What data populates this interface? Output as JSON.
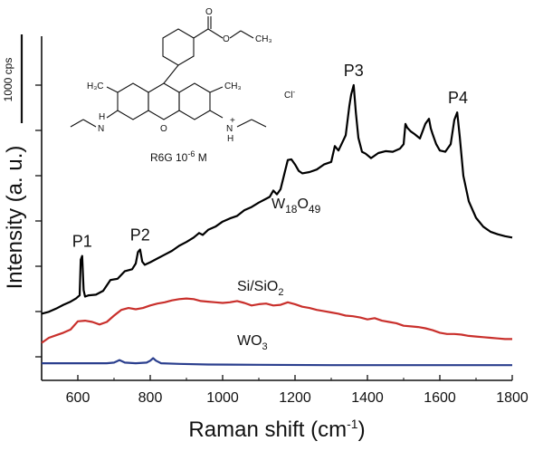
{
  "chart_data": {
    "type": "line",
    "xlabel": "Raman shift (cm",
    "xlabel_sup": "-1",
    "xlabel_tail": ")",
    "ylabel": "Intensity  (a. u.)",
    "xlim": [
      500,
      1800
    ],
    "x_ticks": [
      600,
      800,
      1000,
      1200,
      1400,
      1600,
      1800
    ],
    "y_ticks": 7,
    "grid": false,
    "scale_bar": {
      "label": "1000 cps",
      "value": 1000
    },
    "molecule": {
      "caption_base": "R6G 10",
      "caption_exp": "-6",
      "caption_tail": " M",
      "counterion": "Cl",
      "counterion_charge": "-",
      "plus": "+",
      "groups": {
        "methyl_left": "H₃C",
        "methyl_right": "CH₃",
        "ester_ch3": "CH₃",
        "o_ring": "O",
        "o_carbonyl": "O",
        "o_ester": "O",
        "n_left": "N",
        "n_right": "N",
        "h_left": "H",
        "h_right": "H"
      }
    },
    "peak_labels": [
      {
        "text": "P1",
        "x": 612
      },
      {
        "text": "P2",
        "x": 772
      },
      {
        "text": "P3",
        "x": 1362
      },
      {
        "text": "P4",
        "x": 1650
      }
    ],
    "series": [
      {
        "name": "W18O49",
        "label_base": "W",
        "label_sub1": "18",
        "label_mid": "O",
        "label_sub2": "49",
        "color": "#000000",
        "x": [
          500,
          520,
          540,
          560,
          580,
          595,
          605,
          608,
          612,
          616,
          620,
          630,
          650,
          670,
          690,
          710,
          730,
          750,
          760,
          766,
          772,
          778,
          785,
          800,
          820,
          840,
          860,
          880,
          900,
          920,
          935,
          945,
          960,
          980,
          1000,
          1020,
          1040,
          1060,
          1080,
          1100,
          1120,
          1130,
          1140,
          1150,
          1160,
          1170,
          1180,
          1190,
          1200,
          1210,
          1220,
          1240,
          1260,
          1280,
          1300,
          1310,
          1320,
          1330,
          1340,
          1350,
          1355,
          1362,
          1368,
          1375,
          1385,
          1395,
          1410,
          1430,
          1450,
          1470,
          1490,
          1500,
          1505,
          1510,
          1520,
          1530,
          1545,
          1560,
          1570,
          1575,
          1580,
          1590,
          1600,
          1615,
          1630,
          1640,
          1648,
          1655,
          1665,
          1680,
          1700,
          1720,
          1740,
          1760,
          1780,
          1800
        ],
        "y": [
          630,
          660,
          710,
          770,
          820,
          870,
          920,
          1480,
          1540,
          1000,
          900,
          920,
          930,
          990,
          1160,
          1180,
          1300,
          1330,
          1420,
          1600,
          1640,
          1450,
          1400,
          1440,
          1500,
          1560,
          1620,
          1700,
          1760,
          1830,
          1900,
          1870,
          1950,
          2000,
          2080,
          2130,
          2170,
          2260,
          2310,
          2380,
          2440,
          2470,
          2570,
          2510,
          2590,
          2820,
          3050,
          3060,
          2980,
          2880,
          2840,
          2860,
          2900,
          2980,
          3020,
          3270,
          3200,
          3320,
          3440,
          3900,
          4080,
          4230,
          3800,
          3400,
          3180,
          3150,
          3080,
          3160,
          3190,
          3180,
          3230,
          3300,
          3620,
          3560,
          3500,
          3460,
          3390,
          3620,
          3700,
          3550,
          3460,
          3300,
          3200,
          3180,
          3300,
          3680,
          3800,
          3420,
          2800,
          2400,
          2140,
          2000,
          1920,
          1880,
          1850,
          1830
        ]
      },
      {
        "name": "Si/SiO2",
        "label_base": "Si/SiO",
        "label_sub1": "2",
        "color": "#c9302c",
        "x": [
          500,
          520,
          540,
          560,
          580,
          600,
          620,
          640,
          660,
          680,
          700,
          720,
          740,
          760,
          780,
          800,
          820,
          840,
          860,
          880,
          900,
          920,
          940,
          960,
          980,
          1000,
          1020,
          1040,
          1060,
          1080,
          1100,
          1120,
          1140,
          1160,
          1180,
          1200,
          1220,
          1240,
          1260,
          1280,
          1300,
          1320,
          1340,
          1360,
          1380,
          1400,
          1420,
          1440,
          1460,
          1480,
          1500,
          1520,
          1540,
          1560,
          1580,
          1600,
          1620,
          1640,
          1660,
          1680,
          1700,
          1720,
          1740,
          1760,
          1780,
          1800
        ],
        "y": [
          170,
          250,
          290,
          330,
          380,
          510,
          520,
          500,
          460,
          500,
          600,
          690,
          720,
          700,
          720,
          760,
          790,
          810,
          840,
          860,
          870,
          860,
          830,
          820,
          810,
          800,
          810,
          830,
          800,
          760,
          780,
          790,
          760,
          770,
          810,
          780,
          740,
          720,
          690,
          670,
          650,
          630,
          600,
          590,
          570,
          540,
          560,
          520,
          500,
          480,
          440,
          430,
          420,
          400,
          370,
          330,
          310,
          310,
          300,
          280,
          270,
          260,
          250,
          240,
          230,
          230
        ]
      },
      {
        "name": "WO3",
        "label_base": "WO",
        "label_sub1": "3",
        "color": "#2b3f8e",
        "x": [
          500,
          560,
          620,
          680,
          700,
          715,
          730,
          760,
          790,
          800,
          808,
          816,
          830,
          880,
          960,
          1100,
          1300,
          1500,
          1700,
          1800
        ],
        "y": [
          -150,
          -150,
          -150,
          -150,
          -140,
          -100,
          -140,
          -150,
          -140,
          -110,
          -70,
          -110,
          -150,
          -160,
          -170,
          -175,
          -180,
          -180,
          -180,
          -180
        ]
      }
    ]
  }
}
